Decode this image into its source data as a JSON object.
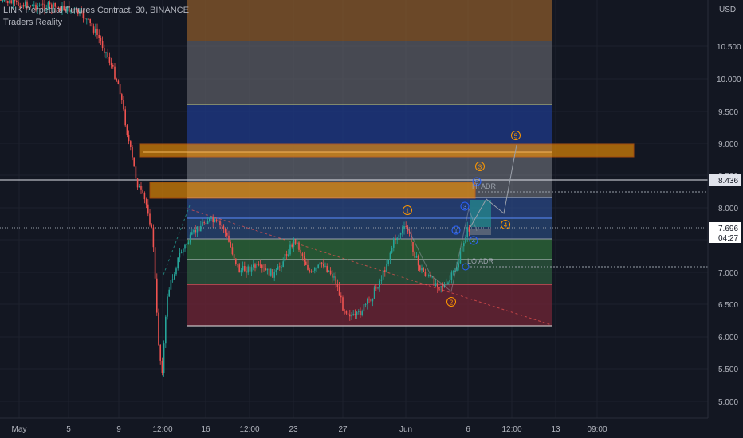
{
  "header": {
    "symbol_line": "LINK Perpetual Futures Contract, 30, BINANCE",
    "indicator": "Traders Reality"
  },
  "axis": {
    "currency": "USD",
    "y_ticks": [
      "10.500",
      "10.000",
      "9.500",
      "9.000",
      "8.500",
      "8.000",
      "7.500",
      "7.000",
      "6.500",
      "6.000",
      "5.500",
      "5.000"
    ],
    "x_ticks": [
      "May",
      "5",
      "9",
      "12:00",
      "16",
      "12:00",
      "23",
      "27",
      "Jun",
      "6",
      "12:00",
      "13",
      "09:00"
    ]
  },
  "price_labels": {
    "upper": "8.436",
    "last": "7.696",
    "countdown": "04:27"
  },
  "annotations": {
    "wave_labels": [
      "1",
      "2",
      "3",
      "4",
      "5"
    ],
    "sub_labels": [
      "1",
      "3",
      "4",
      "5"
    ],
    "hi_adr": "HI ADR",
    "lo_adr": "LO ADR"
  },
  "colors": {
    "background": "#131722",
    "up": "#26a69a",
    "down": "#ef5350",
    "orange": "#ff9800",
    "blue": "#2962ff",
    "text": "#b2b5be"
  },
  "chart_data": {
    "type": "candlestick",
    "ylim": [
      4.8,
      11.3
    ],
    "y_scale": "linear",
    "zones": [
      {
        "from": 10.55,
        "to": 11.3,
        "color": "#8a5a2b"
      },
      {
        "from": 9.6,
        "to": 10.55,
        "color": "#5e6066"
      },
      {
        "from": 8.85,
        "to": 9.6,
        "color": "#1f3a8a"
      },
      {
        "from": 8.3,
        "to": 8.85,
        "color": "#7a7d86"
      },
      {
        "from": 7.75,
        "to": 8.3,
        "color": "#2b4a8a"
      },
      {
        "from": 7.45,
        "to": 7.75,
        "color": "#2a4a7a"
      },
      {
        "from": 7.2,
        "to": 7.45,
        "color": "#2e6b3a"
      },
      {
        "from": 6.8,
        "to": 7.2,
        "color": "#2d5a3d"
      },
      {
        "from": 6.17,
        "to": 6.8,
        "color": "#6b2434"
      }
    ],
    "supply_zones": [
      {
        "from": 8.78,
        "to": 8.98
      },
      {
        "from": 8.13,
        "to": 8.37
      }
    ],
    "horizontal_lines": [
      9.6,
      8.876,
      8.3,
      7.83,
      7.45,
      7.2,
      6.8,
      6.17
    ],
    "marked_levels": {
      "upper": 8.436,
      "last": 7.696
    }
  }
}
